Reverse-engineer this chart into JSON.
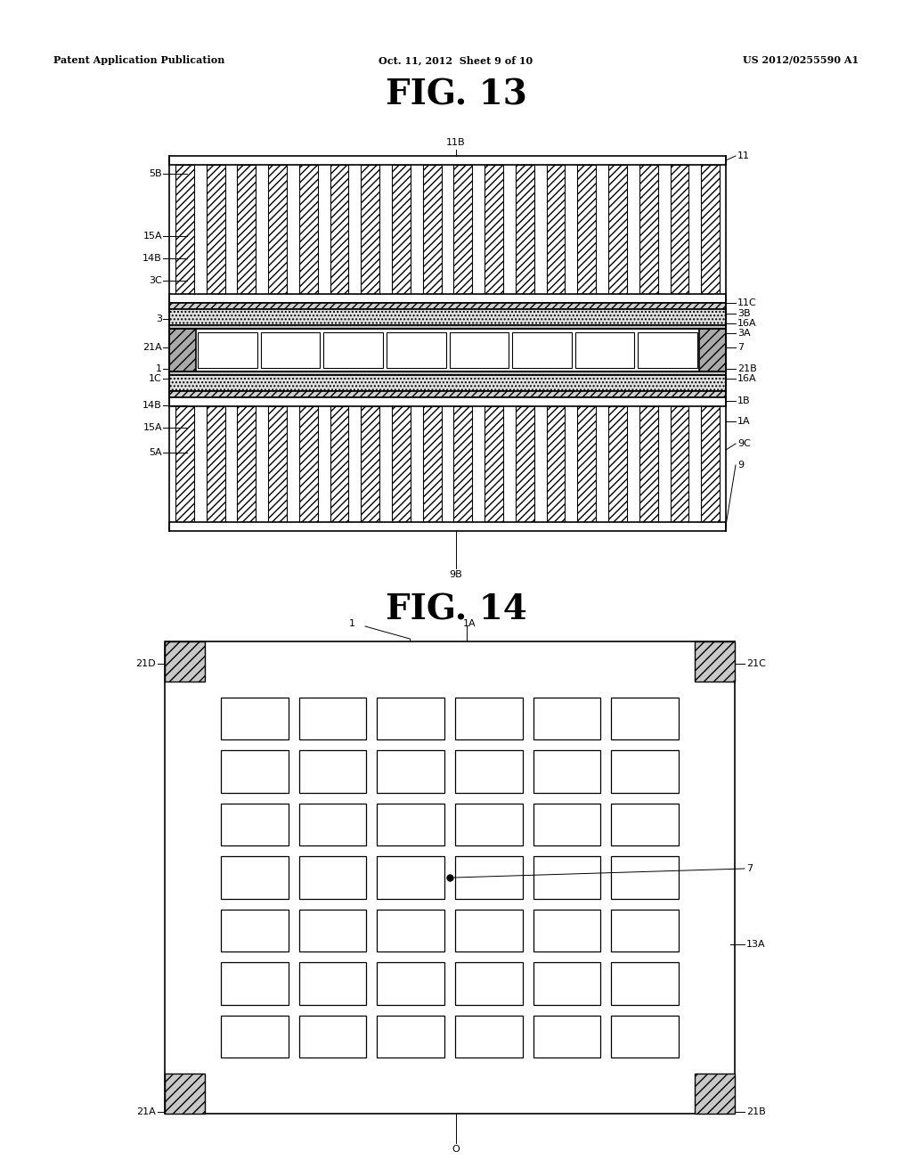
{
  "bg_color": "#ffffff",
  "header_left": "Patent Application Publication",
  "header_center": "Oct. 11, 2012  Sheet 9 of 10",
  "header_right": "US 2012/0255590 A1",
  "fig13_title": "FIG. 13",
  "fig14_title": "FIG. 14",
  "line_color": "#000000",
  "ann_fontsize": 8,
  "title_fontsize": 28,
  "header_fontsize": 8
}
